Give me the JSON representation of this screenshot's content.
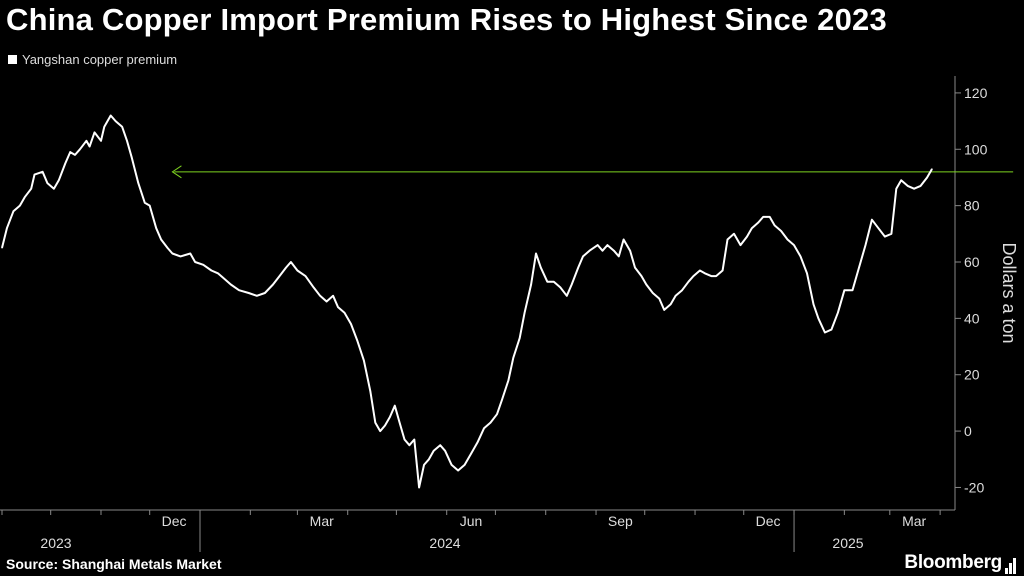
{
  "header": {
    "title": "China Copper Import Premium Rises to Highest Since 2023"
  },
  "footer": {
    "source": "Source: Shanghai Metals Market",
    "brand": "Bloomberg"
  },
  "colors": {
    "background": "#000000",
    "series_line": "#ffffff",
    "annotation_arrow": "#7ed321",
    "axis": "#888888"
  },
  "chart_data": {
    "type": "line",
    "title": "China Copper Import Premium Rises to Highest Since 2023",
    "ylabel": "Dollars a ton",
    "xlabel": "",
    "ylim": [
      -28,
      126
    ],
    "yticks": [
      -20,
      0,
      20,
      40,
      60,
      80,
      100,
      120
    ],
    "y_axis_side": "right",
    "grid": false,
    "legend_placement": "top-left",
    "x_month_ticks": [
      "Dec",
      "Mar",
      "Jun",
      "Sep",
      "Dec",
      "Mar"
    ],
    "x_year_labels": [
      "2023",
      "2024",
      "2025"
    ],
    "annotation": {
      "type": "horizontal-arrow",
      "value": 92,
      "from_date": "2025-05-16",
      "to_date": "2023-12-15",
      "description": "latest level compared with earlier peak"
    },
    "series": [
      {
        "name": "Yangshan copper premium",
        "color": "#ffffff",
        "points": [
          [
            "2023-09-01",
            65
          ],
          [
            "2023-09-04",
            72
          ],
          [
            "2023-09-08",
            78
          ],
          [
            "2023-09-12",
            80
          ],
          [
            "2023-09-15",
            83
          ],
          [
            "2023-09-19",
            86
          ],
          [
            "2023-09-21",
            91
          ],
          [
            "2023-09-26",
            92
          ],
          [
            "2023-09-29",
            88
          ],
          [
            "2023-10-03",
            86
          ],
          [
            "2023-10-06",
            89
          ],
          [
            "2023-10-10",
            95
          ],
          [
            "2023-10-13",
            99
          ],
          [
            "2023-10-16",
            98
          ],
          [
            "2023-10-19",
            100
          ],
          [
            "2023-10-23",
            103
          ],
          [
            "2023-10-25",
            101
          ],
          [
            "2023-10-28",
            106
          ],
          [
            "2023-11-01",
            103
          ],
          [
            "2023-11-03",
            108
          ],
          [
            "2023-11-07",
            112
          ],
          [
            "2023-11-10",
            110
          ],
          [
            "2023-11-14",
            108
          ],
          [
            "2023-11-17",
            103
          ],
          [
            "2023-11-20",
            97
          ],
          [
            "2023-11-24",
            88
          ],
          [
            "2023-11-28",
            81
          ],
          [
            "2023-12-01",
            80
          ],
          [
            "2023-12-05",
            72
          ],
          [
            "2023-12-08",
            68
          ],
          [
            "2023-12-12",
            65
          ],
          [
            "2023-12-15",
            63
          ],
          [
            "2023-12-20",
            62
          ],
          [
            "2023-12-26",
            63
          ],
          [
            "2023-12-29",
            60
          ],
          [
            "2024-01-03",
            59
          ],
          [
            "2024-01-08",
            57
          ],
          [
            "2024-01-12",
            56
          ],
          [
            "2024-01-16",
            54
          ],
          [
            "2024-01-20",
            52
          ],
          [
            "2024-01-25",
            50
          ],
          [
            "2024-01-31",
            49
          ],
          [
            "2024-02-05",
            48
          ],
          [
            "2024-02-10",
            49
          ],
          [
            "2024-02-15",
            52
          ],
          [
            "2024-02-19",
            55
          ],
          [
            "2024-02-23",
            58
          ],
          [
            "2024-02-26",
            60
          ],
          [
            "2024-03-01",
            57
          ],
          [
            "2024-03-06",
            55
          ],
          [
            "2024-03-11",
            51
          ],
          [
            "2024-03-15",
            48
          ],
          [
            "2024-03-19",
            46
          ],
          [
            "2024-03-23",
            48
          ],
          [
            "2024-03-26",
            44
          ],
          [
            "2024-03-30",
            42
          ],
          [
            "2024-04-03",
            38
          ],
          [
            "2024-04-07",
            32
          ],
          [
            "2024-04-11",
            25
          ],
          [
            "2024-04-15",
            14
          ],
          [
            "2024-04-18",
            3
          ],
          [
            "2024-04-21",
            0
          ],
          [
            "2024-04-24",
            2
          ],
          [
            "2024-04-27",
            5
          ],
          [
            "2024-04-30",
            9
          ],
          [
            "2024-05-03",
            3
          ],
          [
            "2024-05-06",
            -3
          ],
          [
            "2024-05-09",
            -5
          ],
          [
            "2024-05-12",
            -3
          ],
          [
            "2024-05-15",
            -20
          ],
          [
            "2024-05-18",
            -12
          ],
          [
            "2024-05-21",
            -10
          ],
          [
            "2024-05-24",
            -7
          ],
          [
            "2024-05-28",
            -5
          ],
          [
            "2024-05-31",
            -7
          ],
          [
            "2024-06-04",
            -12
          ],
          [
            "2024-06-08",
            -14
          ],
          [
            "2024-06-12",
            -12
          ],
          [
            "2024-06-16",
            -8
          ],
          [
            "2024-06-20",
            -4
          ],
          [
            "2024-06-24",
            1
          ],
          [
            "2024-06-28",
            3
          ],
          [
            "2024-07-02",
            6
          ],
          [
            "2024-07-05",
            11
          ],
          [
            "2024-07-09",
            18
          ],
          [
            "2024-07-12",
            26
          ],
          [
            "2024-07-16",
            33
          ],
          [
            "2024-07-19",
            42
          ],
          [
            "2024-07-23",
            52
          ],
          [
            "2024-07-26",
            63
          ],
          [
            "2024-07-29",
            58
          ],
          [
            "2024-08-02",
            53
          ],
          [
            "2024-08-06",
            53
          ],
          [
            "2024-08-10",
            51
          ],
          [
            "2024-08-14",
            48
          ],
          [
            "2024-08-17",
            52
          ],
          [
            "2024-08-21",
            58
          ],
          [
            "2024-08-24",
            62
          ],
          [
            "2024-08-28",
            64
          ],
          [
            "2024-09-02",
            66
          ],
          [
            "2024-09-05",
            64
          ],
          [
            "2024-09-08",
            66
          ],
          [
            "2024-09-12",
            64
          ],
          [
            "2024-09-15",
            62
          ],
          [
            "2024-09-18",
            68
          ],
          [
            "2024-09-22",
            64
          ],
          [
            "2024-09-25",
            58
          ],
          [
            "2024-09-29",
            55
          ],
          [
            "2024-10-02",
            52
          ],
          [
            "2024-10-06",
            49
          ],
          [
            "2024-10-10",
            47
          ],
          [
            "2024-10-13",
            43
          ],
          [
            "2024-10-17",
            45
          ],
          [
            "2024-10-20",
            48
          ],
          [
            "2024-10-24",
            50
          ],
          [
            "2024-10-28",
            53
          ],
          [
            "2024-10-31",
            55
          ],
          [
            "2024-11-04",
            57
          ],
          [
            "2024-11-07",
            56
          ],
          [
            "2024-11-11",
            55
          ],
          [
            "2024-11-14",
            55
          ],
          [
            "2024-11-18",
            57
          ],
          [
            "2024-11-21",
            68
          ],
          [
            "2024-11-25",
            70
          ],
          [
            "2024-11-29",
            66
          ],
          [
            "2024-12-03",
            69
          ],
          [
            "2024-12-06",
            72
          ],
          [
            "2024-12-10",
            74
          ],
          [
            "2024-12-13",
            76
          ],
          [
            "2024-12-17",
            76
          ],
          [
            "2024-12-20",
            73
          ],
          [
            "2024-12-24",
            71
          ],
          [
            "2024-12-28",
            68
          ],
          [
            "2025-01-01",
            66
          ],
          [
            "2025-01-05",
            62
          ],
          [
            "2025-01-09",
            56
          ],
          [
            "2025-01-13",
            45
          ],
          [
            "2025-01-16",
            40
          ],
          [
            "2025-01-20",
            35
          ],
          [
            "2025-01-24",
            36
          ],
          [
            "2025-01-28",
            42
          ],
          [
            "2025-02-01",
            50
          ],
          [
            "2025-02-06",
            50
          ],
          [
            "2025-02-10",
            58
          ],
          [
            "2025-02-14",
            66
          ],
          [
            "2025-02-18",
            75
          ],
          [
            "2025-02-22",
            72
          ],
          [
            "2025-02-26",
            69
          ],
          [
            "2025-03-02",
            70
          ],
          [
            "2025-03-05",
            86
          ],
          [
            "2025-03-08",
            89
          ],
          [
            "2025-03-12",
            87
          ],
          [
            "2025-03-16",
            86
          ],
          [
            "2025-03-20",
            87
          ],
          [
            "2025-03-24",
            90
          ],
          [
            "2025-03-27",
            93
          ]
        ]
      }
    ]
  }
}
